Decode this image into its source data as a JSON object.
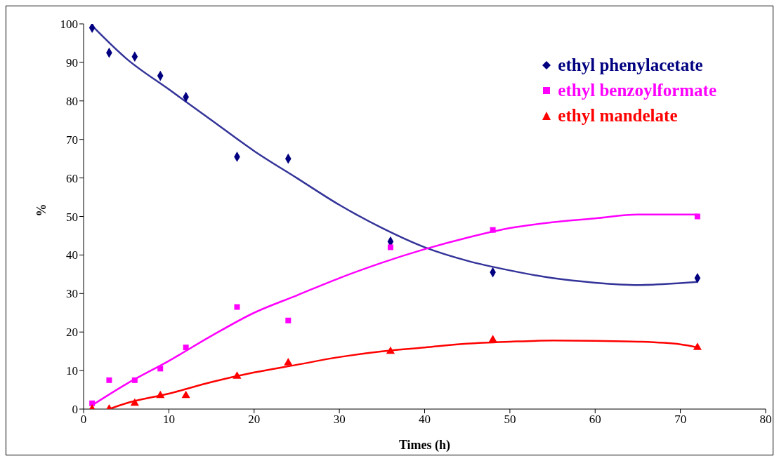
{
  "chart_data": {
    "type": "scatter",
    "xlabel": "Times (h)",
    "ylabel": "%",
    "xlim": [
      0,
      80
    ],
    "xticks": [
      0,
      10,
      20,
      30,
      40,
      50,
      60,
      70,
      80
    ],
    "ylim": [
      0,
      100
    ],
    "yticks": [
      0,
      10,
      20,
      30,
      40,
      50,
      60,
      70,
      80,
      90,
      100
    ],
    "grid": false,
    "legend": "top right",
    "series": [
      {
        "name": "ethyl phenylacetate",
        "marker": "diamond",
        "color": "#000080",
        "x": [
          1,
          3,
          6,
          9,
          12,
          18,
          24,
          36,
          48,
          72
        ],
        "values": [
          99,
          92.5,
          91.5,
          86.5,
          81,
          65.5,
          65,
          43.5,
          35.5,
          34
        ]
      },
      {
        "name": "ethyl benzoylformate",
        "marker": "square",
        "color": "#ff00ff",
        "x": [
          1,
          3,
          6,
          9,
          12,
          18,
          24,
          36,
          48,
          72
        ],
        "values": [
          1.5,
          7.5,
          7.5,
          10.5,
          16,
          26.5,
          23,
          42,
          46.5,
          50
        ]
      },
      {
        "name": "ethyl mandelate",
        "marker": "triangle",
        "color": "#ff0000",
        "x": [
          1,
          3,
          6,
          9,
          12,
          18,
          24,
          36,
          48,
          72
        ],
        "values": [
          0,
          0,
          1.5,
          3.5,
          3.5,
          8.5,
          12,
          15,
          18,
          16
        ]
      },
      {
        "type": "line",
        "color": "#333399",
        "x": [
          1,
          5,
          10,
          15,
          20,
          25,
          30,
          35,
          40,
          45,
          50,
          55,
          60,
          65,
          70,
          72
        ],
        "values": [
          99.5,
          91,
          83,
          75,
          67,
          60,
          53,
          47,
          42,
          38.5,
          36,
          34,
          32.8,
          32.2,
          32.7,
          33
        ]
      },
      {
        "type": "line",
        "color": "#ff00ff",
        "x": [
          1,
          5,
          10,
          15,
          20,
          25,
          30,
          35,
          40,
          45,
          50,
          55,
          60,
          65,
          72
        ],
        "values": [
          1,
          6.5,
          12.5,
          19,
          25,
          29.5,
          34,
          38,
          41.5,
          44.5,
          47,
          48.5,
          49.5,
          50.5,
          50.5
        ]
      },
      {
        "type": "line",
        "color": "#ff0000",
        "x": [
          3,
          5,
          10,
          15,
          20,
          25,
          30,
          35,
          40,
          45,
          50,
          55,
          60,
          65,
          70,
          72
        ],
        "values": [
          0,
          1.5,
          4,
          7,
          9.5,
          11.5,
          13.5,
          15,
          16,
          17,
          17.5,
          17.8,
          17.7,
          17.5,
          16.8,
          16
        ]
      }
    ]
  }
}
